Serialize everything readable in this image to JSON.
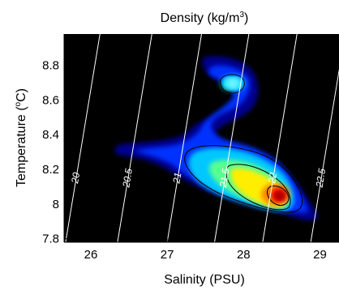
{
  "chart_data": {
    "type": "heatmap",
    "title_base": "Density (kg/m",
    "title_sup": "3",
    "title_end": ")",
    "xlabel": "Salinity (PSU)",
    "ylabel_base": "Temperature (",
    "ylabel_sup": "o",
    "ylabel_end": "C)",
    "xlim": [
      25.65,
      29.25
    ],
    "ylim": [
      7.78,
      8.98
    ],
    "xticks": [
      "26",
      "27",
      "28",
      "29"
    ],
    "xtick_values": [
      26,
      27,
      28,
      29
    ],
    "yticks": [
      "7.8",
      "8",
      "8.2",
      "8.4",
      "8.6",
      "8.8"
    ],
    "ytick_values": [
      7.8,
      8.0,
      8.2,
      8.4,
      8.6,
      8.8
    ],
    "background": "#000000",
    "colormap": "jet",
    "isopycnals": [
      {
        "label": "20",
        "s_bottom": 25.67,
        "s_top": 26.12
      },
      {
        "label": "20.5",
        "s_bottom": 26.35,
        "s_top": 26.8
      },
      {
        "label": "21",
        "s_bottom": 27.0,
        "s_top": 27.45
      },
      {
        "label": "21.5",
        "s_bottom": 27.62,
        "s_top": 28.07
      },
      {
        "label": "22",
        "s_bottom": 28.25,
        "s_top": 28.7
      },
      {
        "label": "22.5",
        "s_bottom": 28.88,
        "s_top": 29.33
      }
    ],
    "density_peaks": [
      {
        "s": 28.52,
        "t": 8.07,
        "level": 1.0
      },
      {
        "s": 27.78,
        "t": 8.69,
        "level": 0.38
      }
    ]
  }
}
